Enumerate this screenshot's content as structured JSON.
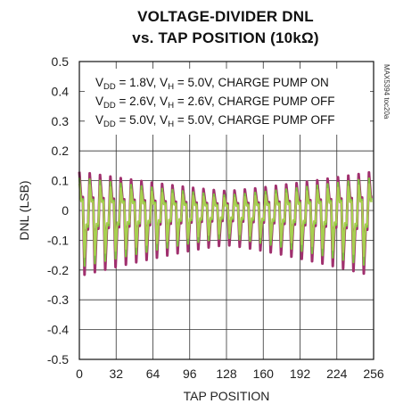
{
  "chart_data": {
    "type": "line",
    "title_line1": "VOLTAGE-DIVIDER DNL",
    "title_line2": "vs. TAP POSITION (10kΩ)",
    "xlabel": "TAP POSITION",
    "ylabel": "DNL (LSB)",
    "xlim": [
      0,
      256
    ],
    "ylim": [
      -0.5,
      0.5
    ],
    "x_ticks": [
      "0",
      "32",
      "64",
      "96",
      "128",
      "160",
      "192",
      "224",
      "256"
    ],
    "y_ticks": [
      "0.5",
      "0.4",
      "0.3",
      "0.2",
      "0.1",
      "0",
      "-0.1",
      "-0.2",
      "-0.3",
      "-0.4",
      "-0.5"
    ],
    "grid": true,
    "legend": [
      {
        "vdd": "= 1.8V, V",
        "vh": "= 5.0V, CHARGE PUMP ON"
      },
      {
        "vdd": "= 2.6V, V",
        "vh": "= 2.6V, CHARGE PUMP OFF"
      },
      {
        "vdd": "= 5.0V, V",
        "vh": "= 5.0V, CHARGE PUMP OFF"
      }
    ],
    "legend_placement": "top-center",
    "side_label": "MAX5394 toc20a",
    "series": [
      {
        "color": "#a0306e",
        "peak_ends": [
          0.13,
          -0.22
        ],
        "peak_middle": [
          0.03,
          -0.06
        ]
      },
      {
        "color": "#7fc241",
        "peak_ends": [
          0.11,
          -0.19
        ],
        "peak_middle": [
          0.02,
          -0.04
        ]
      },
      {
        "color": "#a8d050",
        "peak_ends": [
          0.09,
          -0.16
        ],
        "peak_middle": [
          0.015,
          -0.03
        ]
      }
    ],
    "notes": "Oscillating DNL pattern; largest excursions near taps 0 and 256, smallest near tap 128."
  }
}
